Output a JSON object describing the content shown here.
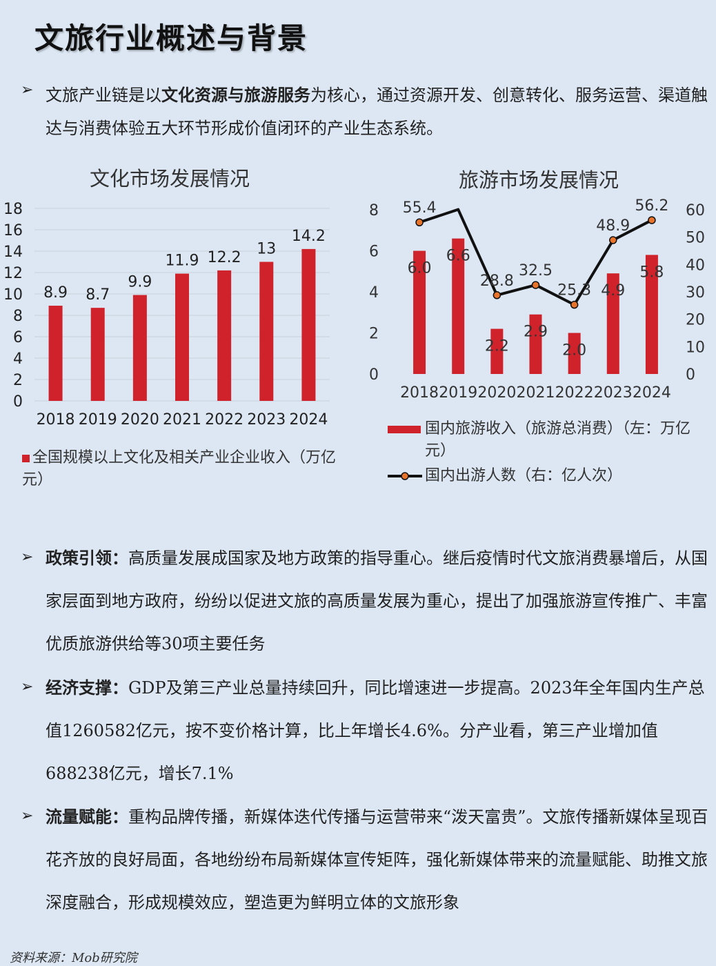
{
  "page": {
    "title": "文旅行业概述与背景",
    "intro": {
      "pre": "文旅产业链是以",
      "bold": "文化资源与旅游服务",
      "post": "为核心，通过资源开发、创意转化、服务运营、渠道触达与消费体验五大环节形成价值闭环的产业生态系统。"
    },
    "bullets": [
      {
        "head": "政策引领：",
        "body": "高质量发展成国家及地方政策的指导重心。继后疫情时代文旅消费暴增后，从国家层面到地方政府，纷纷以促进文旅的高质量发展为重心，提出了加强旅游宣传推广、丰富优质旅游供给等30项主要任务"
      },
      {
        "head": "经济支撑：",
        "body": "GDP及第三产业总量持续回升，同比增速进一步提高。2023年全年国内生产总值1260582亿元，按不变价格计算，比上年增长4.6%。分产业看，第三产业增加值688238亿元，增长7.1%"
      },
      {
        "head": "流量赋能：",
        "body": "重构品牌传播，新媒体迭代传播与运营带来“泼天富贵”。文旅传播新媒体呈现百花齐放的良好局面，各地纷纷布局新媒体宣传矩阵，强化新媒体带来的流量赋能、助推文旅深度融合，形成规模效应，塑造更为鲜明立体的文旅形象"
      }
    ],
    "source": "资料来源：Mob研究院"
  },
  "chart_data": [
    {
      "type": "bar",
      "title": "文化市场发展情况",
      "categories": [
        "2018",
        "2019",
        "2020",
        "2021",
        "2022",
        "2023",
        "2024"
      ],
      "series": [
        {
          "name": "全国规模以上文化及相关产业企业收入（万亿元）",
          "values": [
            8.9,
            8.7,
            9.9,
            11.9,
            12.2,
            13,
            14.2
          ],
          "color": "#d0222a"
        }
      ],
      "ylim": [
        0,
        18
      ],
      "yticks": [
        0,
        2,
        4,
        6,
        8,
        10,
        12,
        14,
        16,
        18
      ],
      "grid": true,
      "legend": "bottom"
    },
    {
      "type": "bar",
      "title": "旅游市场发展情况",
      "categories": [
        "2018",
        "2019",
        "2020",
        "2021",
        "2022",
        "2023",
        "2024"
      ],
      "series": [
        {
          "name": "国内旅游收入（旅游总消费）（左：万亿元）",
          "type": "bar",
          "axis": "left",
          "values": [
            6.0,
            6.6,
            2.2,
            2.9,
            2.0,
            4.9,
            5.8
          ],
          "labels": [
            "6.0",
            "6.6",
            "2.2",
            "2.9",
            "2.0",
            "4.9",
            "5.8"
          ],
          "color": "#d0222a"
        },
        {
          "name": "国内出游人数（右：亿人次）",
          "type": "line",
          "axis": "right",
          "values": [
            55.4,
            60.1,
            28.8,
            32.5,
            25.3,
            48.9,
            56.2
          ],
          "labels": [
            "55.4",
            "",
            "28.8",
            "32.5",
            "25.3",
            "48.9",
            "56.2"
          ],
          "color": "#111111",
          "marker_color": "#e8732a"
        }
      ],
      "ylim_left": [
        0,
        8
      ],
      "yticks_left": [
        0,
        2,
        4,
        6,
        8
      ],
      "ylim_right": [
        0,
        60
      ],
      "yticks_right": [
        0,
        10,
        20,
        30,
        40,
        50,
        60
      ],
      "legend": "bottom"
    }
  ]
}
